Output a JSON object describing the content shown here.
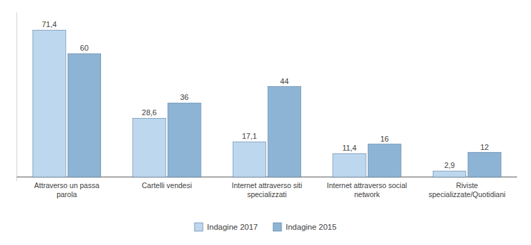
{
  "chart_data": {
    "type": "bar",
    "categories": [
      "Attraverso un passa\nparola",
      "Cartelli vendesi",
      "Internet attraverso siti\nspecializzati",
      "Internet attraverso social\nnetwork",
      "Riviste\nspecializzate/Quotidiani"
    ],
    "series": [
      {
        "name": "Indagine 2017",
        "color": "#bdd7ee",
        "values": [
          71.4,
          28.6,
          17.1,
          11.4,
          2.9
        ],
        "value_labels": [
          "71,4",
          "28,6",
          "17,1",
          "11,4",
          "2,9"
        ]
      },
      {
        "name": "Indagine 2015",
        "color": "#8db4d4",
        "values": [
          60,
          36,
          44,
          16,
          12
        ]
      }
    ],
    "ylim": [
      -2,
      80
    ],
    "grid": false,
    "legend": "bottom",
    "data_labels": true,
    "tick_labels": "x"
  }
}
